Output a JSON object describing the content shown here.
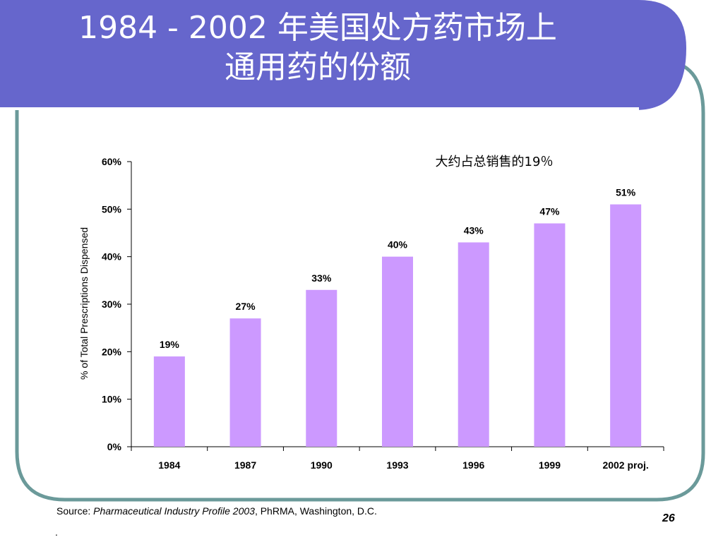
{
  "slide": {
    "title_line1": "1984 - 2002 年美国处方药市场上",
    "title_line2": "通用药的份额",
    "source_prefix": "Source: ",
    "source_italic": "Pharmaceutical Industry Profile 2003",
    "source_suffix": ", PhRMA, Washington, D.C.",
    "source_dot": ".",
    "page_number": "26",
    "colors": {
      "header": "#6666cc",
      "border": "#6b9a9a",
      "bar": "#cc99ff"
    }
  },
  "chart_data": {
    "type": "bar",
    "categories": [
      "1984",
      "1987",
      "1990",
      "1993",
      "1996",
      "1999",
      "2002 proj."
    ],
    "values": [
      19,
      27,
      33,
      40,
      43,
      47,
      51
    ],
    "data_labels": [
      "19%",
      "27%",
      "33%",
      "40%",
      "43%",
      "47%",
      "51%"
    ],
    "ylabel": "% of Total Prescriptions Dispensed",
    "ylim": [
      0,
      60
    ],
    "yticks": [
      0,
      10,
      20,
      30,
      40,
      50,
      60
    ],
    "ytick_labels": [
      "0%",
      "10%",
      "20%",
      "30%",
      "40%",
      "50%",
      "60%"
    ],
    "annotation": "大约占总销售的19％",
    "grid": false
  }
}
